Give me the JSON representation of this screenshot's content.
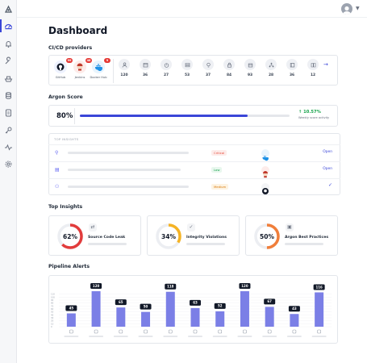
{
  "page": {
    "title": "Dashboard"
  },
  "sections": {
    "cicd": "CI/CD providers",
    "argon": "Argon Score",
    "top_insights": "Top Insights",
    "pipeline_alerts": "Pipeline Alerts"
  },
  "sidebar": {
    "items": [
      {
        "icon": "logo-icon"
      },
      {
        "icon": "dashboard-icon",
        "active": true
      },
      {
        "icon": "bell-icon"
      },
      {
        "icon": "wrench-icon"
      },
      {
        "icon": "ship-icon"
      },
      {
        "icon": "database-icon"
      },
      {
        "icon": "clipboard-icon"
      },
      {
        "icon": "key-icon"
      },
      {
        "icon": "activity-icon"
      },
      {
        "icon": "settings-icon"
      }
    ]
  },
  "providers": [
    {
      "name": "GitHub",
      "badge": "99",
      "color": "#111827"
    },
    {
      "name": "Jenkins",
      "badge": "48",
      "color": "#d9534f"
    },
    {
      "name": "Docker Hub",
      "badge": "9",
      "color": "#1d91e6"
    }
  ],
  "provider_stats": [
    {
      "icon": "user-icon",
      "value": "120"
    },
    {
      "icon": "calendar-icon",
      "value": "36"
    },
    {
      "icon": "timer-icon",
      "value": "27"
    },
    {
      "icon": "server-icon",
      "value": "53"
    },
    {
      "icon": "bulb-icon",
      "value": "37"
    },
    {
      "icon": "lock-icon",
      "value": "84"
    },
    {
      "icon": "box-icon",
      "value": "93"
    },
    {
      "icon": "network-icon",
      "value": "28"
    },
    {
      "icon": "stack-icon",
      "value": "36"
    },
    {
      "icon": "book-icon",
      "value": "12"
    }
  ],
  "argon_score": {
    "value": "80%",
    "progress": 0.8,
    "delta": "10.57%",
    "delta_sub": "Weekly score activity"
  },
  "insights": {
    "header": "TOP INSIGHTS",
    "rows": [
      {
        "icon": "link-icon",
        "severity": "Critical",
        "sev_color": "#e74c3c",
        "sev_bg": "#fdecea",
        "source": "Docker Hub",
        "action": "Open"
      },
      {
        "icon": "document-icon",
        "severity": "Low",
        "sev_color": "#16a34a",
        "sev_bg": "#e8f7ee",
        "source": "Jenkins",
        "action": "Open"
      },
      {
        "icon": "users-icon",
        "severity": "Medium",
        "sev_color": "#d97706",
        "sev_bg": "#fdf3e2",
        "source": "GitHub",
        "action": ""
      }
    ]
  },
  "gauges": [
    {
      "value": "62%",
      "pct": 0.62,
      "label": "Source Code Leak",
      "color": "#e23c3c",
      "icon": "code-icon"
    },
    {
      "value": "34%",
      "pct": 0.34,
      "label": "Integrity Violations",
      "color": "#f5b324",
      "icon": "shield-check-icon"
    },
    {
      "value": "50%",
      "pct": 0.5,
      "label": "Argon Best Practices",
      "color": "#f07e3a",
      "icon": "clipboard-check-icon"
    }
  ],
  "chart_data": {
    "type": "bar",
    "title": "",
    "xlabel": "",
    "ylabel": "",
    "ylim": [
      0,
      150
    ],
    "yticks": [
      0,
      10,
      20,
      30,
      40,
      50,
      60,
      70,
      80,
      90,
      100,
      110
    ],
    "categories": [
      "",
      "",
      "",
      "",
      "",
      "",
      "",
      "",
      "",
      "",
      ""
    ],
    "values": [
      45,
      120,
      65,
      50,
      118,
      63,
      52,
      120,
      67,
      43,
      116
    ],
    "bar_color": "#7b7fe6",
    "grid": true
  }
}
